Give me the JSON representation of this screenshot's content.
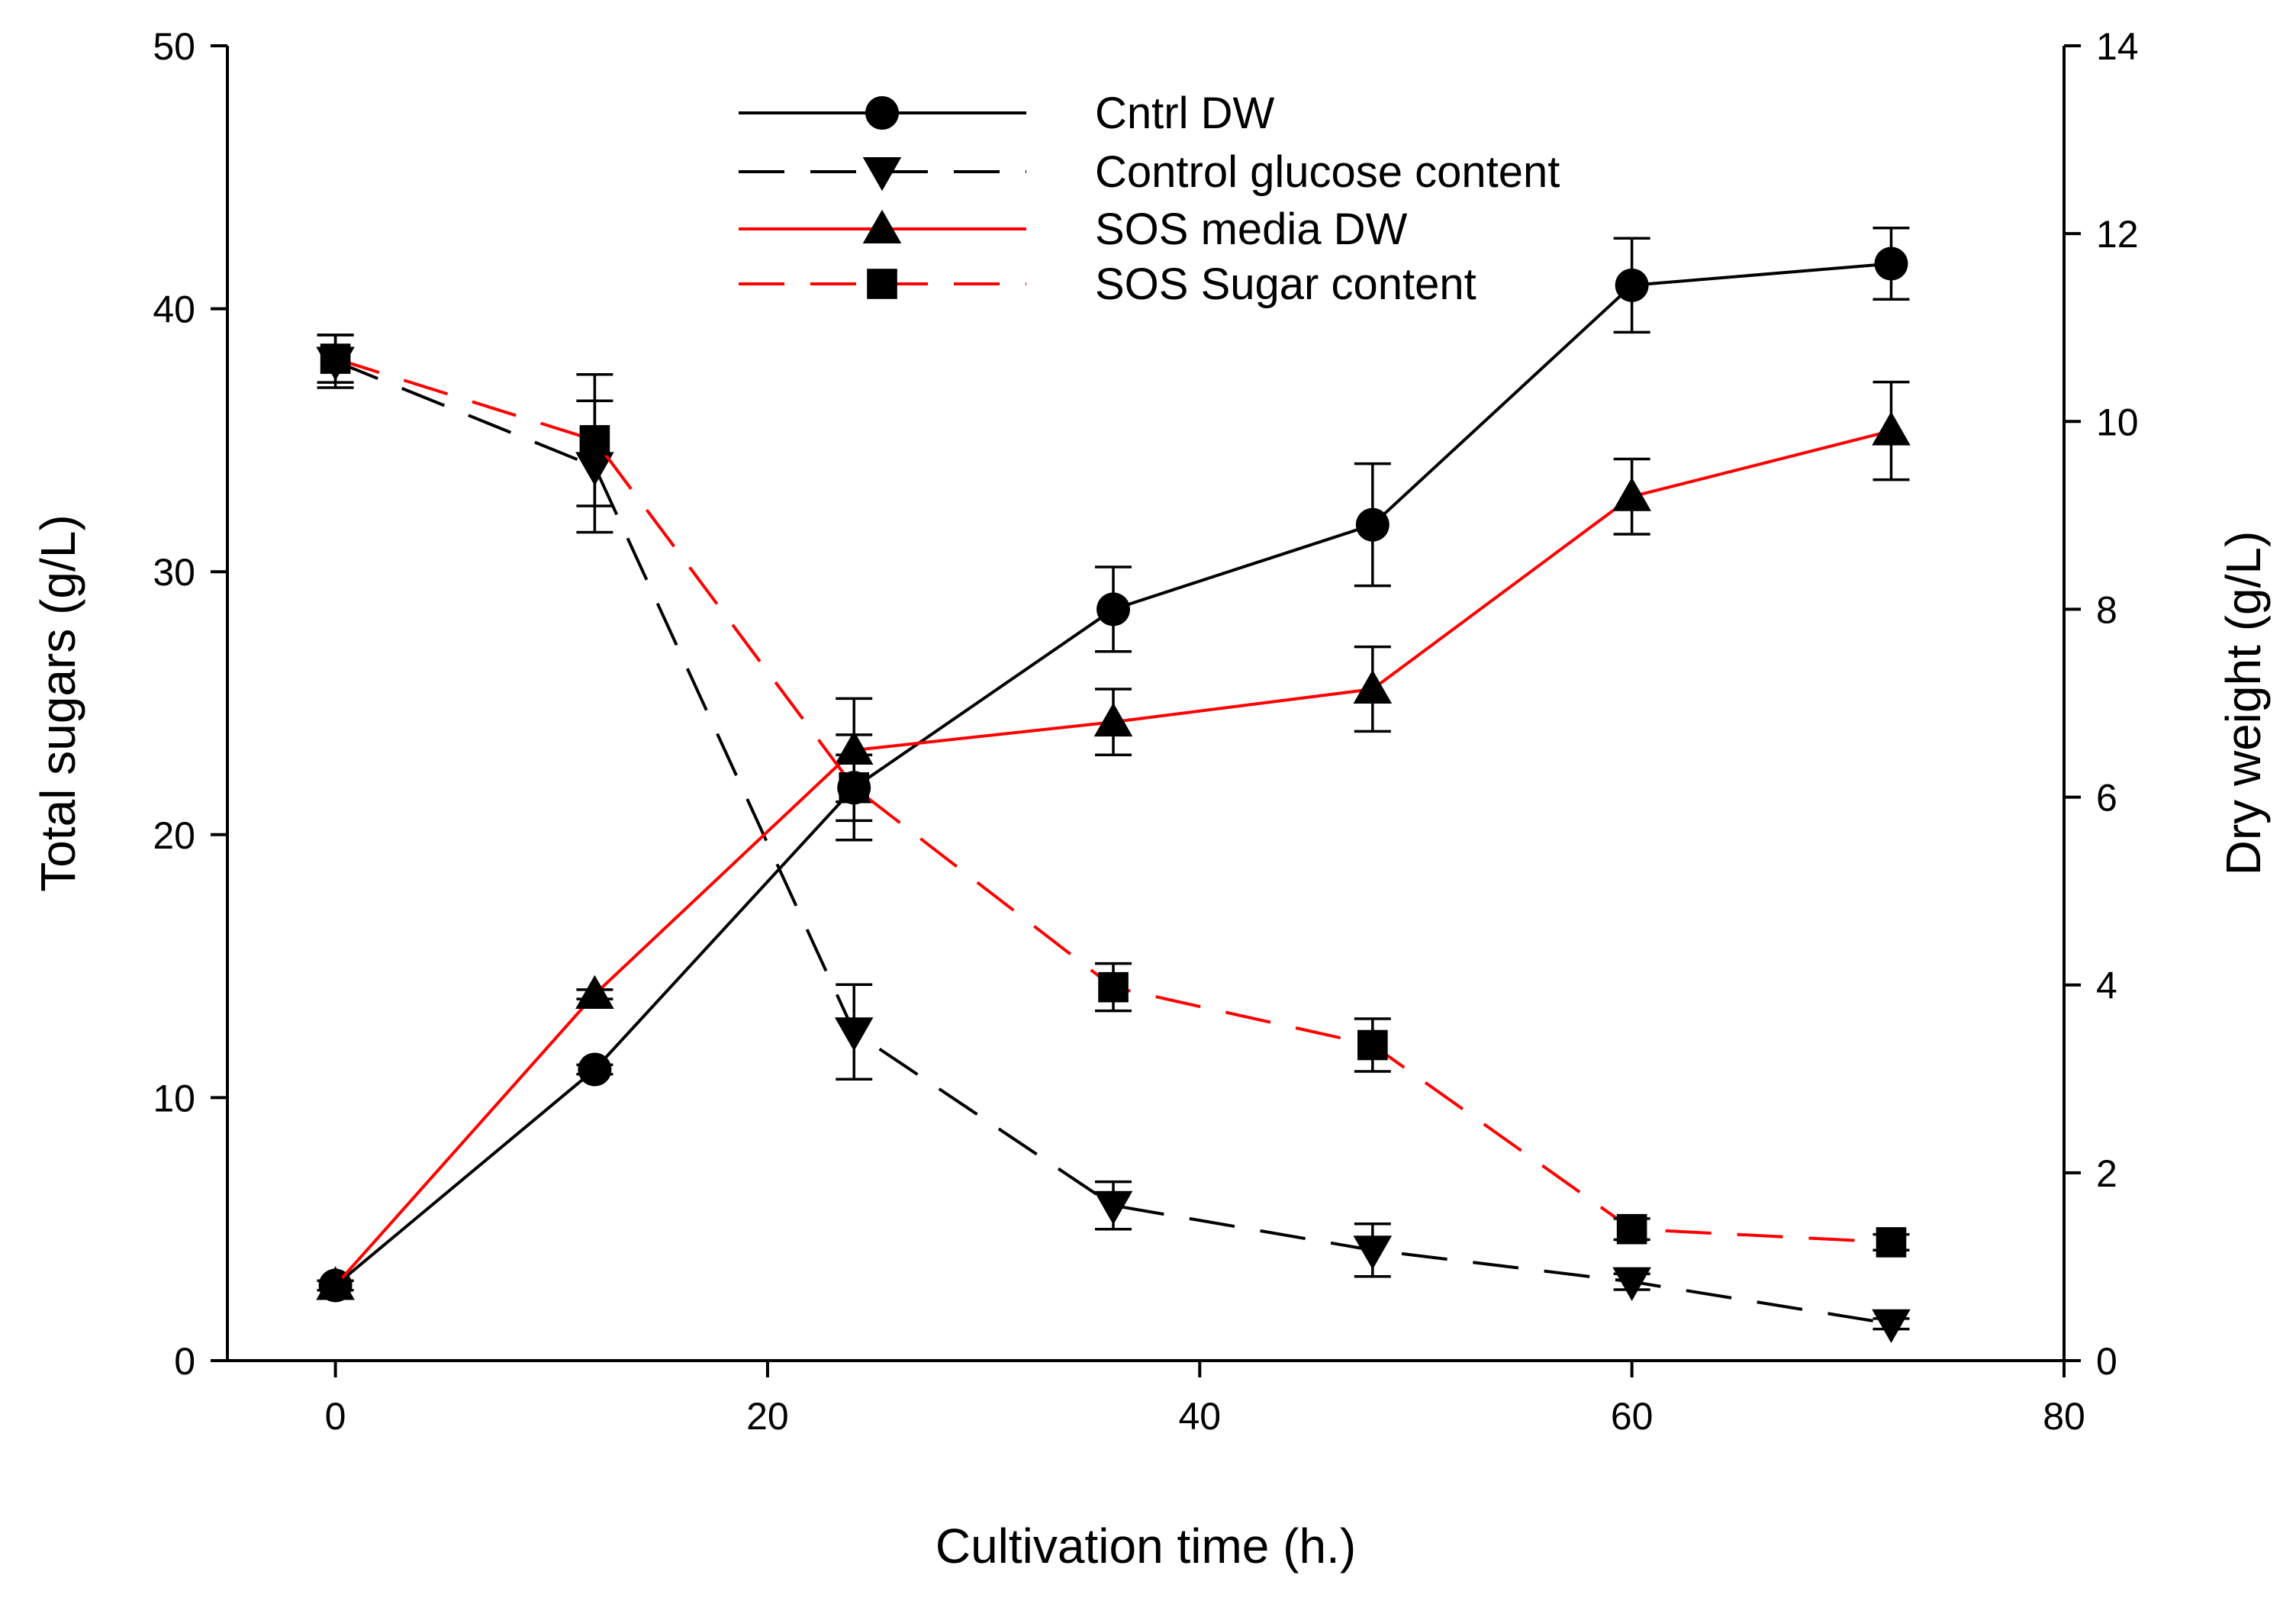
{
  "chart_data": {
    "type": "line",
    "title": "",
    "xlabel": "Cultivation time (h.)",
    "ylabel_left": "Total sugars (g/L)",
    "ylabel_right": "Dry weight (g/L)",
    "xlim": [
      -5,
      80
    ],
    "ylim_left": [
      0,
      50
    ],
    "ylim_right": [
      0,
      14
    ],
    "x_ticks": [
      0,
      20,
      40,
      60,
      80
    ],
    "y_left_ticks": [
      0,
      10,
      20,
      30,
      40,
      50
    ],
    "y_right_ticks": [
      0,
      2,
      4,
      6,
      8,
      10,
      12,
      14
    ],
    "grid": false,
    "legend_position": "top-center",
    "series": [
      {
        "name": "Cntrl DW",
        "axis": "right",
        "color": "#000000",
        "dashed": false,
        "marker": "circle",
        "x": [
          0,
          12,
          24,
          36,
          48,
          60,
          72
        ],
        "y": [
          0.8,
          3.1,
          6.1,
          8.0,
          8.9,
          11.45,
          11.68
        ],
        "error": [
          0.05,
          0.05,
          0.35,
          0.45,
          0.65,
          0.5,
          0.38
        ]
      },
      {
        "name": "Control glucose content",
        "axis": "left",
        "color": "#000000",
        "dashed": true,
        "marker": "triangle-down",
        "x": [
          0,
          12,
          24,
          36,
          48,
          60,
          72
        ],
        "y": [
          38.0,
          34.0,
          12.5,
          5.9,
          4.2,
          3.0,
          1.4
        ],
        "error": [
          1.0,
          2.5,
          1.8,
          0.9,
          1.0,
          0.3,
          0.2
        ]
      },
      {
        "name": "SOS media DW",
        "axis": "right",
        "color": "#ff0000",
        "dashed": false,
        "marker": "triangle-up",
        "x": [
          0,
          12,
          24,
          36,
          48,
          60,
          72
        ],
        "y": [
          0.8,
          3.9,
          6.5,
          6.8,
          7.15,
          9.2,
          9.9
        ],
        "error": [
          0.05,
          0.05,
          0.55,
          0.35,
          0.45,
          0.4,
          0.52
        ]
      },
      {
        "name": "SOS Sugar content",
        "axis": "left",
        "color": "#ff0000",
        "dashed": true,
        "marker": "square",
        "x": [
          0,
          12,
          24,
          36,
          48,
          60,
          72
        ],
        "y": [
          38.1,
          35.0,
          21.8,
          14.2,
          12.0,
          5.0,
          4.5
        ],
        "error": [
          0.9,
          2.5,
          2.0,
          0.9,
          1.0,
          0.4,
          0.3
        ]
      }
    ]
  }
}
